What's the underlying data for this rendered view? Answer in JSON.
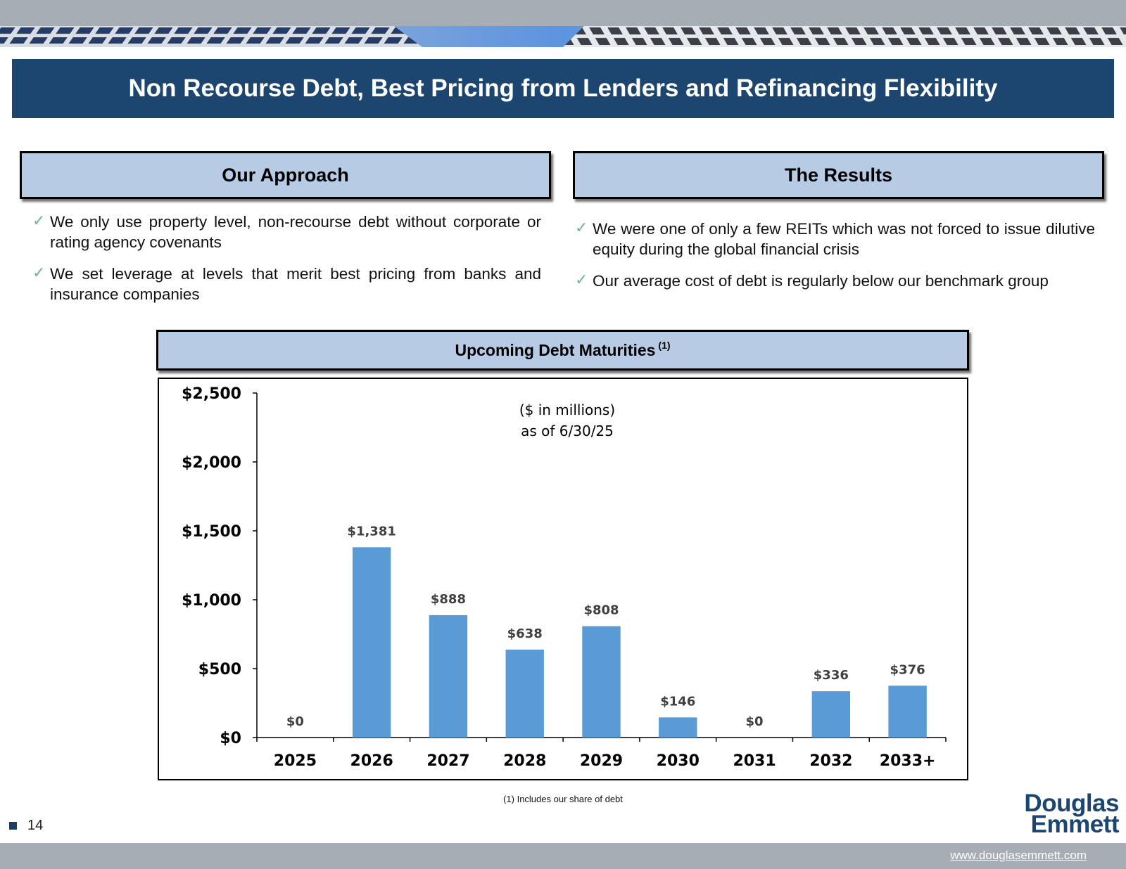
{
  "header": {
    "title": "Non Recourse Debt, Best Pricing from Lenders and Refinancing Flexibility"
  },
  "approach": {
    "heading": "Our Approach",
    "bullets": [
      "We only use property level, non-recourse debt without corporate or rating agency covenants",
      "We set leverage at levels that merit best pricing from banks and insurance companies"
    ]
  },
  "results": {
    "heading": "The Results",
    "bullets": [
      "We were one of only a few REITs which was not forced to issue dilutive equity during the global financial crisis",
      "Our average cost of debt is regularly below our benchmark group"
    ]
  },
  "chart_section": {
    "heading": "Upcoming Debt Maturities",
    "heading_note": "(1)"
  },
  "chart_data": {
    "type": "bar",
    "title": "Upcoming Debt Maturities",
    "annotation": [
      "($ in millions)",
      "as of 6/30/25"
    ],
    "categories": [
      "2025",
      "2026",
      "2027",
      "2028",
      "2029",
      "2030",
      "2031",
      "2032",
      "2033+"
    ],
    "values": [
      0,
      1381,
      888,
      638,
      808,
      146,
      0,
      336,
      376
    ],
    "data_labels": [
      "$0",
      "$1,381",
      "$888",
      "$638",
      "$808",
      "$146",
      "$0",
      "$336",
      "$376"
    ],
    "y_ticks": [
      0,
      500,
      1000,
      1500,
      2000,
      2500
    ],
    "y_tick_labels": [
      "$0",
      "$500",
      "$1,000",
      "$1,500",
      "$2,000",
      "$2,500"
    ],
    "ylim": [
      0,
      2500
    ],
    "xlabel": "",
    "ylabel": "",
    "grid": false,
    "bar_color": "#5b9bd5"
  },
  "footnote": "(1) Includes our share of debt",
  "footer": {
    "page_number": "14",
    "logo_line1": "Douglas",
    "logo_line2": "Emmett",
    "url": "www.douglasemmett.com"
  },
  "colors": {
    "title_bar": "#1c4570",
    "section_head": "#b8cbe4",
    "check": "#6fb590",
    "frame_bars": "#a7adb4"
  }
}
